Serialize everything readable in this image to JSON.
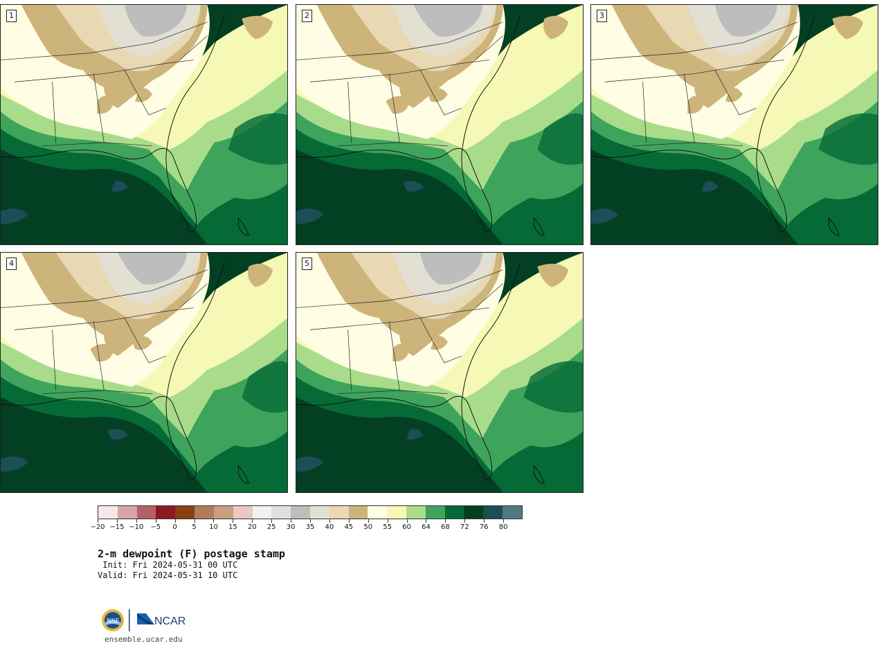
{
  "panels": [
    {
      "label": "1"
    },
    {
      "label": "2"
    },
    {
      "label": "3"
    },
    {
      "label": "4"
    },
    {
      "label": "5"
    }
  ],
  "colorbar": {
    "colors": [
      "#f4e9e9",
      "#d7a6a8",
      "#b6616a",
      "#8c1a22",
      "#8a4011",
      "#b07c59",
      "#c89f83",
      "#e6cabb",
      "#f1f1f1",
      "#dfdfdf",
      "#bdbdbd",
      "#e1e0d2",
      "#e8d8b3",
      "#cdb47b",
      "#fffde3",
      "#f6f8b5",
      "#a8dc8b",
      "#3fa45b",
      "#056a36",
      "#033f23",
      "#1b4e56",
      "#517a7e"
    ],
    "ticks": [
      "−20",
      "−15",
      "−10",
      "−5",
      "0",
      "5",
      "10",
      "15",
      "20",
      "25",
      "30",
      "35",
      "40",
      "45",
      "50",
      "55",
      "60",
      "64",
      "68",
      "72",
      "76",
      "80"
    ]
  },
  "title": "2-m dewpoint (F) postage stamp",
  "init": " Init: Fri 2024-05-31 00 UTC",
  "valid": "Valid: Fri 2024-05-31 10 UTC",
  "logos": {
    "nsf": "NSF",
    "ncar": "NCAR"
  },
  "website": "ensemble.ucar.edu"
}
